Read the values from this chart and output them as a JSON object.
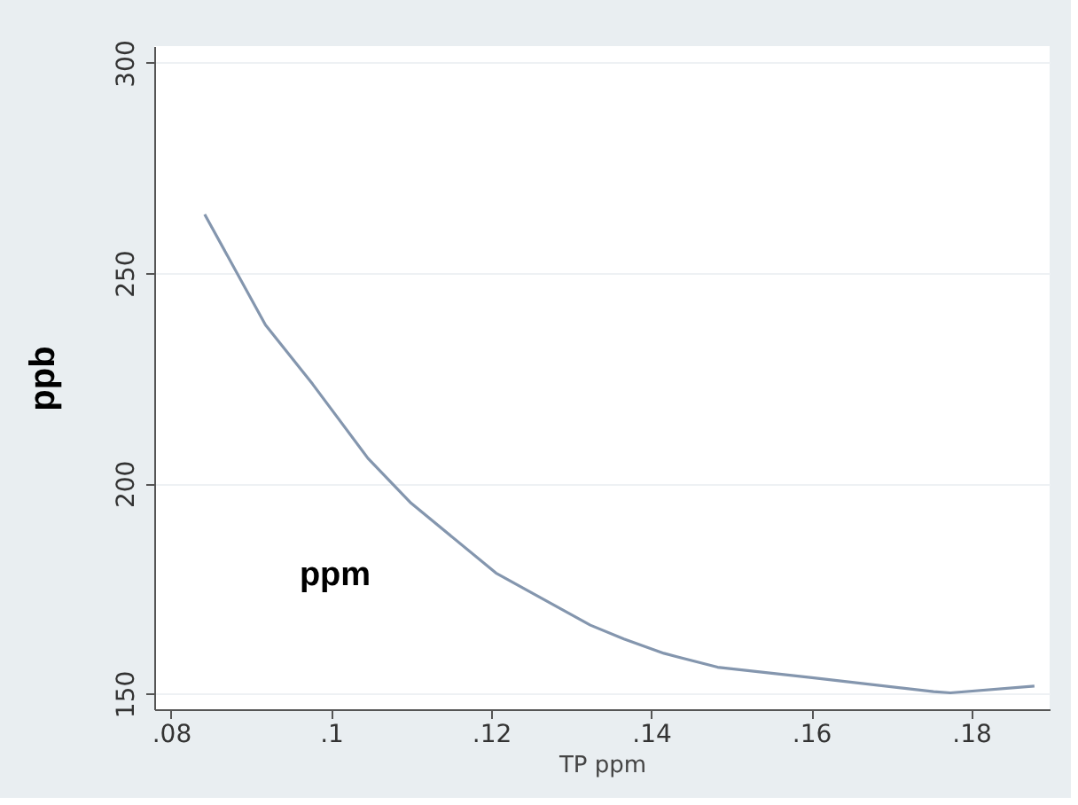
{
  "chart_data": {
    "type": "line",
    "xlabel": "TP ppm",
    "ylabel": "ppb",
    "x": [
      0.0842,
      0.0918,
      0.0977,
      0.1046,
      0.11,
      0.1206,
      0.1324,
      0.1366,
      0.1416,
      0.1483,
      0.1601,
      0.1753,
      0.1774,
      0.1879
    ],
    "series": [
      {
        "color": "#8496ae",
        "values": [
          264,
          237.7,
          223.6,
          206,
          195.3,
          178.7,
          166.3,
          163,
          159.6,
          156.3,
          153.8,
          150.5,
          150.2,
          151.8
        ]
      }
    ],
    "xlim": [
      0.0779,
      0.1898
    ],
    "ylim": [
      146.3,
      304
    ],
    "xticks": [
      {
        "value": 0.08,
        "label": ".08"
      },
      {
        "value": 0.1,
        "label": ".1"
      },
      {
        "value": 0.12,
        "label": ".12"
      },
      {
        "value": 0.14,
        "label": ".14"
      },
      {
        "value": 0.16,
        "label": ".16"
      },
      {
        "value": 0.18,
        "label": ".18"
      }
    ],
    "yticks": [
      150,
      200,
      250,
      300
    ],
    "grid": "y",
    "marker": "none",
    "line_style": "solid",
    "annotations": [
      "ppm"
    ]
  }
}
